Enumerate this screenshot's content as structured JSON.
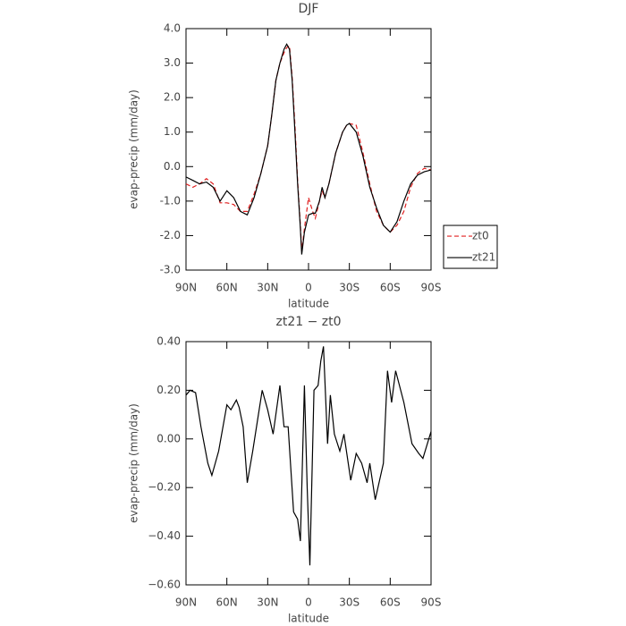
{
  "chart_data": [
    {
      "type": "line",
      "title": "DJF",
      "x_label": "latitude",
      "y_label": "evap-precip (mm/day)",
      "x": [
        90,
        85,
        80,
        75,
        70,
        65,
        60,
        55,
        50,
        45,
        40,
        35,
        30,
        27,
        24,
        21,
        18,
        16,
        14,
        12,
        10,
        8,
        6,
        5,
        3,
        0,
        -3,
        -5,
        -8,
        -10,
        -12,
        -15,
        -20,
        -25,
        -28,
        -30,
        -35,
        -40,
        -45,
        -50,
        -55,
        -60,
        -65,
        -70,
        -75,
        -80,
        -85,
        -90
      ],
      "series": [
        {
          "name": "zt0",
          "color": "#e02020",
          "dash": true,
          "values": [
            -0.5,
            -0.6,
            -0.5,
            -0.35,
            -0.5,
            -1.05,
            -1.05,
            -1.1,
            -1.3,
            -1.3,
            -0.8,
            -0.2,
            0.6,
            1.5,
            2.5,
            3.0,
            3.3,
            3.45,
            3.5,
            2.6,
            1.2,
            -0.4,
            -1.7,
            -2.45,
            -1.8,
            -0.9,
            -1.3,
            -1.5,
            -1.0,
            -0.7,
            -0.9,
            -0.5,
            0.4,
            1.0,
            1.2,
            1.25,
            1.2,
            0.4,
            -0.5,
            -1.3,
            -1.7,
            -1.9,
            -1.7,
            -1.3,
            -0.6,
            -0.2,
            -0.05,
            -0.1
          ]
        },
        {
          "name": "zt21",
          "color": "#000000",
          "dash": false,
          "values": [
            -0.3,
            -0.4,
            -0.5,
            -0.45,
            -0.6,
            -1.0,
            -0.7,
            -0.9,
            -1.3,
            -1.4,
            -0.9,
            -0.2,
            0.6,
            1.5,
            2.5,
            3.0,
            3.4,
            3.55,
            3.4,
            2.5,
            1.0,
            -0.5,
            -1.8,
            -2.55,
            -1.9,
            -1.4,
            -1.35,
            -1.35,
            -1.0,
            -0.6,
            -0.9,
            -0.5,
            0.4,
            1.0,
            1.2,
            1.25,
            1.0,
            0.3,
            -0.6,
            -1.2,
            -1.7,
            -1.9,
            -1.6,
            -1.0,
            -0.5,
            -0.25,
            -0.15,
            -0.1
          ]
        }
      ],
      "xlim": [
        90,
        -90
      ],
      "xticks": [
        {
          "value": 90,
          "label": "90N"
        },
        {
          "value": 60,
          "label": "60N"
        },
        {
          "value": 30,
          "label": "30N"
        },
        0,
        {
          "value": -30,
          "label": "30S"
        },
        {
          "value": -60,
          "label": "60S"
        },
        {
          "value": -90,
          "label": "90S"
        }
      ],
      "ylim": [
        -3,
        4
      ],
      "yticks": [
        {
          "value": -3,
          "label": "-3.0"
        },
        {
          "value": -2,
          "label": "-2.0"
        },
        {
          "value": -1,
          "label": "-1.0"
        },
        {
          "value": 0,
          "label": "0.0"
        },
        {
          "value": 1,
          "label": "1.0"
        },
        {
          "value": 2,
          "label": "2.0"
        },
        {
          "value": 3,
          "label": "3.0"
        },
        {
          "value": 4,
          "label": "4.0"
        }
      ],
      "legend": "right"
    },
    {
      "type": "line",
      "title": "zt21 − zt0",
      "x_label": "latitude",
      "y_label": "evap-precip (mm/day)",
      "x": [
        90,
        87,
        83,
        79,
        74,
        71,
        66,
        60,
        57,
        53,
        51,
        48,
        45,
        41,
        34,
        30,
        26,
        21,
        18,
        15,
        11,
        8,
        6,
        3,
        1,
        -1,
        -4,
        -7,
        -9,
        -11,
        -14,
        -16,
        -19,
        -23,
        -26,
        -31,
        -35,
        -39,
        -43,
        -45,
        -49,
        -55,
        -58,
        -61,
        -64,
        -70,
        -76,
        -81,
        -84,
        -90
      ],
      "color": "#000000",
      "values": [
        0.18,
        0.2,
        0.19,
        0.05,
        -0.1,
        -0.15,
        -0.05,
        0.14,
        0.12,
        0.16,
        0.13,
        0.05,
        -0.18,
        -0.05,
        0.2,
        0.12,
        0.02,
        0.22,
        0.05,
        0.05,
        -0.3,
        -0.33,
        -0.42,
        0.22,
        -0.2,
        -0.52,
        0.2,
        0.22,
        0.32,
        0.38,
        -0.02,
        0.18,
        0.02,
        -0.05,
        0.02,
        -0.17,
        -0.06,
        -0.1,
        -0.18,
        -0.1,
        -0.25,
        -0.1,
        0.28,
        0.15,
        0.28,
        0.15,
        -0.02,
        -0.06,
        -0.08,
        0.03
      ],
      "xlim": [
        90,
        -90
      ],
      "xticks": [
        {
          "value": 90,
          "label": "90N"
        },
        {
          "value": 60,
          "label": "60N"
        },
        {
          "value": 30,
          "label": "30N"
        },
        0,
        {
          "value": -30,
          "label": "30S"
        },
        {
          "value": -60,
          "label": "60S"
        },
        {
          "value": -90,
          "label": "90S"
        }
      ],
      "ylim": [
        -0.6,
        0.4
      ],
      "yticks": [
        {
          "value": -0.6,
          "label": "−0.60"
        },
        {
          "value": -0.4,
          "label": "−0.40"
        },
        {
          "value": -0.2,
          "label": "−0.20"
        },
        {
          "value": 0,
          "label": "0.00"
        },
        {
          "value": 0.2,
          "label": "0.20"
        },
        {
          "value": 0.4,
          "label": "0.40"
        }
      ]
    }
  ]
}
